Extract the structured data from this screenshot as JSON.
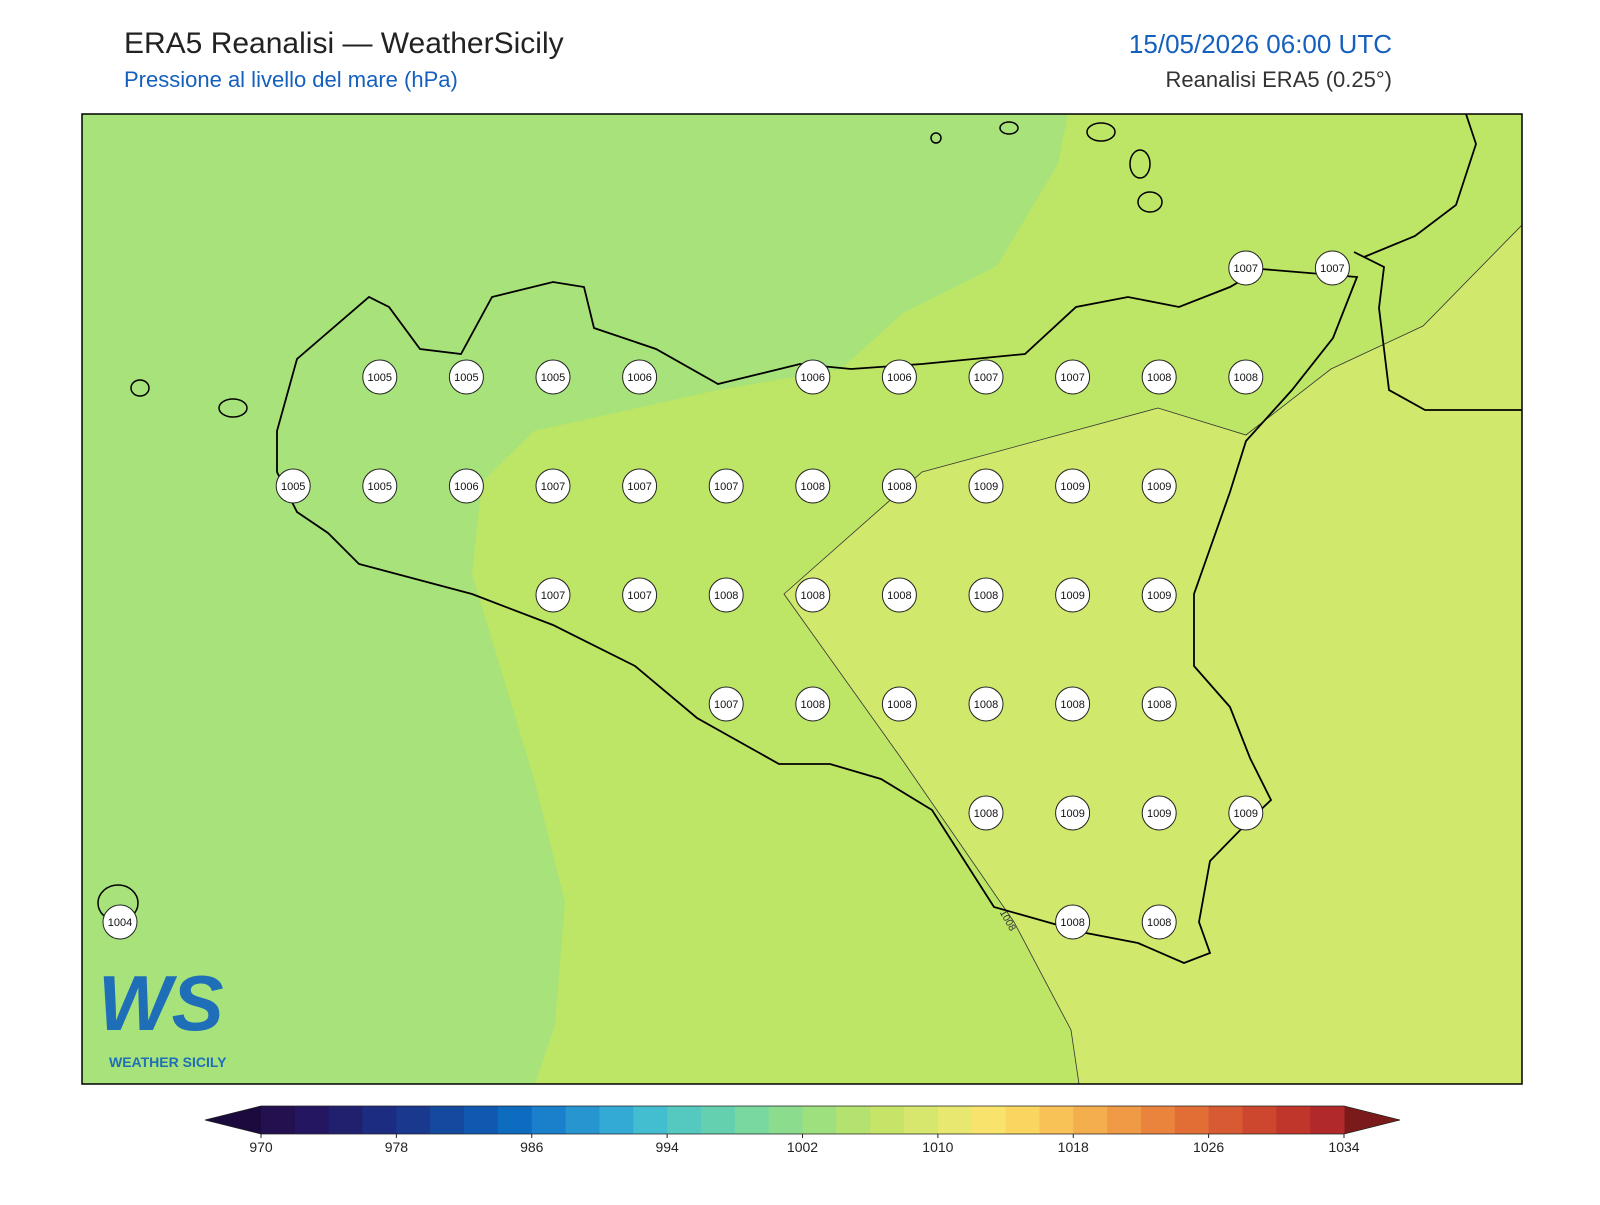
{
  "header": {
    "title": "ERA5 Reanalisi — WeatherSicily",
    "subtitle": "Pressione al livello del mare (hPa)",
    "datetime": "15/05/2026 06:00 UTC",
    "source": "Reanalisi ERA5 (0.25°)"
  },
  "pressure_labels": [
    [
      null,
      null,
      null,
      null,
      null,
      null,
      null,
      null,
      null,
      null,
      null,
      null,
      null,
      1007,
      1007
    ],
    [
      null,
      null,
      null,
      1005,
      1005,
      1005,
      1006,
      null,
      1006,
      1006,
      1007,
      1007,
      1008,
      1008,
      null
    ],
    [
      null,
      null,
      1005,
      1005,
      1006,
      1007,
      1007,
      1007,
      1008,
      1008,
      1009,
      1009,
      1009,
      null,
      null
    ],
    [
      null,
      null,
      null,
      null,
      null,
      1007,
      1007,
      1008,
      1008,
      1008,
      1008,
      1009,
      1009,
      null,
      null
    ],
    [
      null,
      null,
      null,
      null,
      null,
      null,
      null,
      1007,
      1008,
      1008,
      1008,
      1008,
      1008,
      null,
      null
    ],
    [
      null,
      null,
      null,
      null,
      null,
      null,
      null,
      null,
      null,
      null,
      1008,
      1009,
      1009,
      1009,
      null
    ],
    [
      1004,
      null,
      null,
      null,
      null,
      null,
      null,
      null,
      null,
      null,
      null,
      1008,
      1008,
      null,
      null
    ]
  ],
  "contour_label": "1008",
  "logo": {
    "mark": "WS",
    "name": "WEATHER SICILY"
  },
  "colorbar": {
    "range": [
      970,
      1034
    ],
    "ticks": [
      970,
      978,
      986,
      994,
      1002,
      1010,
      1018,
      1026,
      1034
    ],
    "colors": [
      "#23104f",
      "#241660",
      "#21206f",
      "#1c2c80",
      "#19398f",
      "#1549a0",
      "#1159b0",
      "#0d6cc0",
      "#1a80cc",
      "#2795d0",
      "#33aad5",
      "#43bdd0",
      "#55c8c0",
      "#65d0b0",
      "#78d8a0",
      "#8cdc8e",
      "#9fe07e",
      "#b3e26f",
      "#c6e468",
      "#d7e66c",
      "#e8e870",
      "#f8e36c",
      "#fad560",
      "#f8c256",
      "#f5ae4e",
      "#f09a45",
      "#ea843d",
      "#e26e36",
      "#d85a32",
      "#cd472e",
      "#c0362b",
      "#b12929"
    ],
    "under_color": "#1b0a3e",
    "over_color": "#7a1a1a"
  }
}
